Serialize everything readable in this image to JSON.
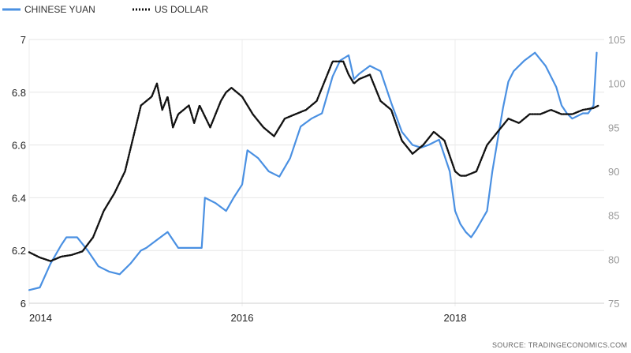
{
  "chart_data": {
    "type": "line",
    "title": "",
    "xlabel": "",
    "ylabel": "",
    "x_ticks": [
      "2014",
      "2016",
      "2018"
    ],
    "x_range": [
      2014.0,
      2019.4
    ],
    "y_left": {
      "ticks": [
        "6",
        "6.2",
        "6.4",
        "6.6",
        "6.8",
        "7"
      ],
      "range": [
        6.0,
        7.0
      ]
    },
    "y_right": {
      "ticks": [
        "75",
        "80",
        "85",
        "90",
        "95",
        "100",
        "105"
      ],
      "range": [
        75,
        105
      ]
    },
    "grid": "horizontal",
    "legend_position": "top-left",
    "series": [
      {
        "name": "CHINESE YUAN",
        "axis": "left",
        "color": "#4a90e2",
        "style": "solid",
        "x": [
          2014.0,
          2014.1,
          2014.2,
          2014.3,
          2014.35,
          2014.45,
          2014.55,
          2014.65,
          2014.75,
          2014.85,
          2014.95,
          2015.05,
          2015.1,
          2015.2,
          2015.3,
          2015.4,
          2015.5,
          2015.6,
          2015.62,
          2015.65,
          2015.75,
          2015.85,
          2015.92,
          2016.0,
          2016.05,
          2016.15,
          2016.25,
          2016.35,
          2016.45,
          2016.55,
          2016.65,
          2016.75,
          2016.85,
          2016.92,
          2017.0,
          2017.05,
          2017.1,
          2017.2,
          2017.3,
          2017.4,
          2017.5,
          2017.6,
          2017.68,
          2017.75,
          2017.85,
          2017.95,
          2018.0,
          2018.05,
          2018.1,
          2018.15,
          2018.2,
          2018.3,
          2018.35,
          2018.45,
          2018.5,
          2018.55,
          2018.65,
          2018.75,
          2018.85,
          2018.95,
          2019.0,
          2019.05,
          2019.1,
          2019.2,
          2019.25,
          2019.3,
          2019.33
        ],
        "y": [
          6.05,
          6.06,
          6.15,
          6.22,
          6.25,
          6.25,
          6.2,
          6.14,
          6.12,
          6.11,
          6.15,
          6.2,
          6.21,
          6.24,
          6.27,
          6.21,
          6.21,
          6.21,
          6.21,
          6.4,
          6.38,
          6.35,
          6.4,
          6.45,
          6.58,
          6.55,
          6.5,
          6.48,
          6.55,
          6.67,
          6.7,
          6.72,
          6.86,
          6.92,
          6.94,
          6.85,
          6.87,
          6.9,
          6.88,
          6.76,
          6.65,
          6.6,
          6.59,
          6.6,
          6.62,
          6.5,
          6.35,
          6.3,
          6.27,
          6.25,
          6.28,
          6.35,
          6.5,
          6.74,
          6.84,
          6.88,
          6.92,
          6.95,
          6.9,
          6.82,
          6.75,
          6.72,
          6.7,
          6.72,
          6.72,
          6.75,
          6.95
        ]
      },
      {
        "name": "US DOLLAR",
        "axis": "right",
        "color": "#111111",
        "style": "dotted",
        "x": [
          2014.0,
          2014.1,
          2014.2,
          2014.3,
          2014.4,
          2014.5,
          2014.6,
          2014.65,
          2014.7,
          2014.8,
          2014.9,
          2015.0,
          2015.05,
          2015.15,
          2015.2,
          2015.25,
          2015.3,
          2015.35,
          2015.4,
          2015.5,
          2015.55,
          2015.6,
          2015.7,
          2015.8,
          2015.85,
          2015.9,
          2016.0,
          2016.1,
          2016.2,
          2016.3,
          2016.4,
          2016.5,
          2016.6,
          2016.7,
          2016.8,
          2016.85,
          2016.95,
          2017.0,
          2017.05,
          2017.1,
          2017.2,
          2017.3,
          2017.4,
          2017.5,
          2017.6,
          2017.7,
          2017.8,
          2017.9,
          2018.0,
          2018.05,
          2018.1,
          2018.2,
          2018.3,
          2018.4,
          2018.5,
          2018.6,
          2018.7,
          2018.8,
          2018.9,
          2019.0,
          2019.1,
          2019.2,
          2019.3,
          2019.35
        ],
        "y": [
          80.8,
          80.2,
          79.8,
          80.3,
          80.5,
          80.9,
          82.5,
          84.0,
          85.5,
          87.5,
          90.0,
          95.0,
          97.5,
          98.5,
          100.0,
          97.0,
          98.5,
          95.0,
          96.5,
          97.5,
          95.5,
          97.5,
          95.0,
          98.0,
          99.0,
          99.5,
          98.5,
          96.5,
          95.0,
          94.0,
          96.0,
          96.5,
          97.0,
          98.0,
          101.0,
          102.5,
          102.5,
          101.0,
          100.0,
          100.5,
          101.0,
          98.0,
          97.0,
          93.5,
          92.0,
          93.0,
          94.5,
          93.5,
          90.0,
          89.5,
          89.5,
          90.0,
          93.0,
          94.5,
          96.0,
          95.5,
          96.5,
          96.5,
          97.0,
          96.5,
          96.5,
          97.0,
          97.2,
          97.5
        ]
      }
    ]
  },
  "source_label": "SOURCE:  TRADINGECONOMICS.COM"
}
